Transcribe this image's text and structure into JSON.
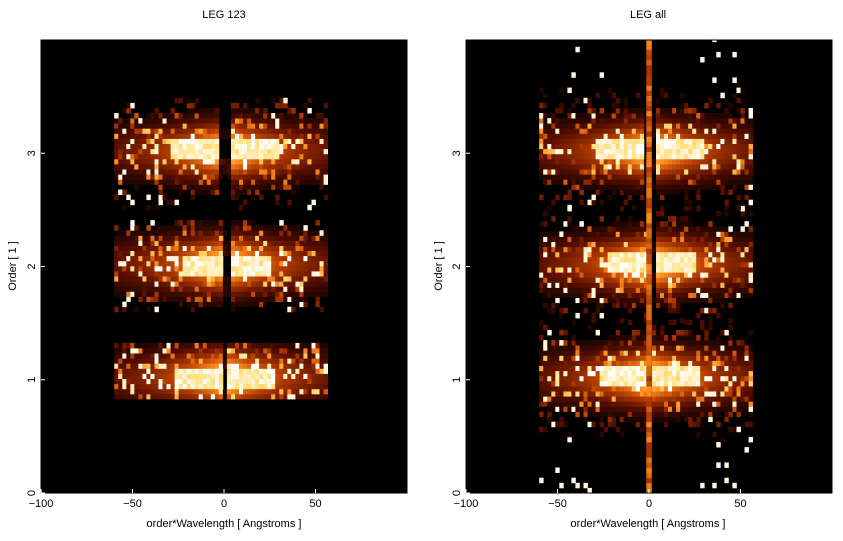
{
  "chart_data": [
    {
      "type": "heatmap",
      "title": "LEG 123",
      "xlabel": "order*Wavelength [ Angstroms ]",
      "ylabel": "Order [ 1 ]",
      "xlim": [
        -100,
        100
      ],
      "ylim": [
        0,
        4
      ],
      "xticks": [
        -100,
        -50,
        0,
        50
      ],
      "yticks": [
        0,
        1,
        2,
        3
      ],
      "colormap": [
        "#000000",
        "#5a0f00",
        "#b33c00",
        "#ff9020",
        "#ffe080",
        "#ffffff"
      ],
      "bands": [
        {
          "order": 1,
          "ymin": 0.83,
          "ymax": 1.32,
          "xmin": -60,
          "xmax": 55,
          "core_half_width": 28,
          "gap_half_width": 1.5
        },
        {
          "order": 2,
          "ymin": 1.6,
          "ymax": 2.4,
          "xmin": -60,
          "xmax": 55,
          "core_half_width": 24,
          "gap_half_width": 2
        },
        {
          "order": 3,
          "ymin": 2.5,
          "ymax": 3.45,
          "xmin": -60,
          "xmax": 55,
          "core_half_width": 30,
          "gap_half_width": 3
        }
      ]
    },
    {
      "type": "heatmap",
      "title": "LEG all",
      "xlabel": "order*Wavelength [ Angstroms ]",
      "ylabel": "Order [ 1 ]",
      "xlim": [
        -100,
        100
      ],
      "ylim": [
        0,
        4
      ],
      "xticks": [
        -100,
        -50,
        0,
        50
      ],
      "yticks": [
        0,
        1,
        2,
        3
      ],
      "colormap": [
        "#000000",
        "#5a0f00",
        "#b33c00",
        "#ff9020",
        "#ffe080",
        "#ffffff"
      ],
      "bands": [
        {
          "order": 1,
          "ymin": 0.0,
          "ymax": 1.5,
          "xmin": -60,
          "xmax": 55,
          "core_half_width": 28,
          "gap_half_width": 1.5
        },
        {
          "order": 2,
          "ymin": 1.5,
          "ymax": 2.5,
          "xmin": -60,
          "xmax": 55,
          "core_half_width": 24,
          "gap_half_width": 2
        },
        {
          "order": 3,
          "ymin": 2.5,
          "ymax": 4.0,
          "xmin": -60,
          "xmax": 55,
          "core_half_width": 30,
          "gap_half_width": 3
        }
      ]
    }
  ]
}
